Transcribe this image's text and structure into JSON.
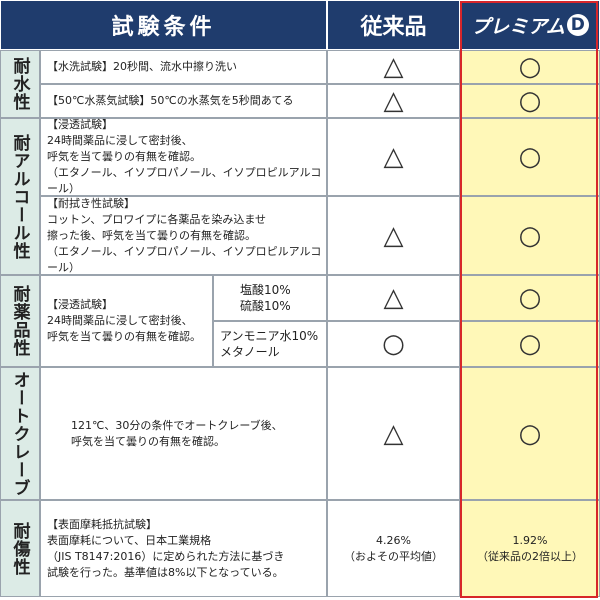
{
  "header": {
    "conditions": "試験条件",
    "conventional": "従来品",
    "premium": "プレミアム",
    "premium_mark": "D"
  },
  "sections": [
    {
      "category": "耐水性",
      "tests": [
        {
          "lines": [
            "【水洗試験】20秒間、流水中擦り洗い"
          ],
          "conventional": "△",
          "premium": "○"
        },
        {
          "lines": [
            "【50℃水蒸気試験】50℃の水蒸気を5秒間あてる"
          ],
          "conventional": "△",
          "premium": "○"
        }
      ]
    },
    {
      "category": "耐アルコール性",
      "tests": [
        {
          "lines": [
            "【浸透試験】",
            "24時間薬品に浸して密封後、",
            "呼気を当て曇りの有無を確認。",
            "（エタノール、イソプロパノール、イソプロピルアルコール）"
          ],
          "conventional": "△",
          "premium": "○"
        },
        {
          "lines": [
            "【耐拭き性試験】",
            "コットン、プロワイプに各薬品を染み込ませ",
            "擦った後、呼気を当て曇りの有無を確認。",
            "（エタノール、イソプロパノール、イソプロピルアルコール）"
          ],
          "conventional": "△",
          "premium": "○"
        }
      ]
    },
    {
      "category": "耐薬品性",
      "lines": [
        "【浸透試験】",
        "24時間薬品に浸して密封後、",
        "呼気を当て曇りの有無を確認。"
      ],
      "tests": [
        {
          "chemicals": [
            "塩酸10%",
            "硫酸10%"
          ],
          "conventional": "△",
          "premium": "○"
        },
        {
          "chemicals": [
            "アンモニア水10%",
            "メタノール"
          ],
          "conventional": "○",
          "premium": "○"
        }
      ]
    },
    {
      "category": "オートクレーブ",
      "tests": [
        {
          "lines": [
            "121℃、30分の条件でオートクレーブ後、",
            "呼気を当て曇りの有無を確認。"
          ],
          "conventional": "△",
          "premium": "○"
        }
      ]
    },
    {
      "category": "耐傷性",
      "tests": [
        {
          "lines": [
            "【表面摩耗抵抗試験】",
            "表面摩耗について、日本工業規格",
            "（JIS T8147:2016）に定められた方法に基づき",
            "試験を行った。基準値は8%以下となっている。"
          ],
          "conventional": [
            "4.26%",
            "（およその平均値）"
          ],
          "premium": [
            "1.92%",
            "（従来品の2倍以上）"
          ]
        }
      ]
    }
  ]
}
